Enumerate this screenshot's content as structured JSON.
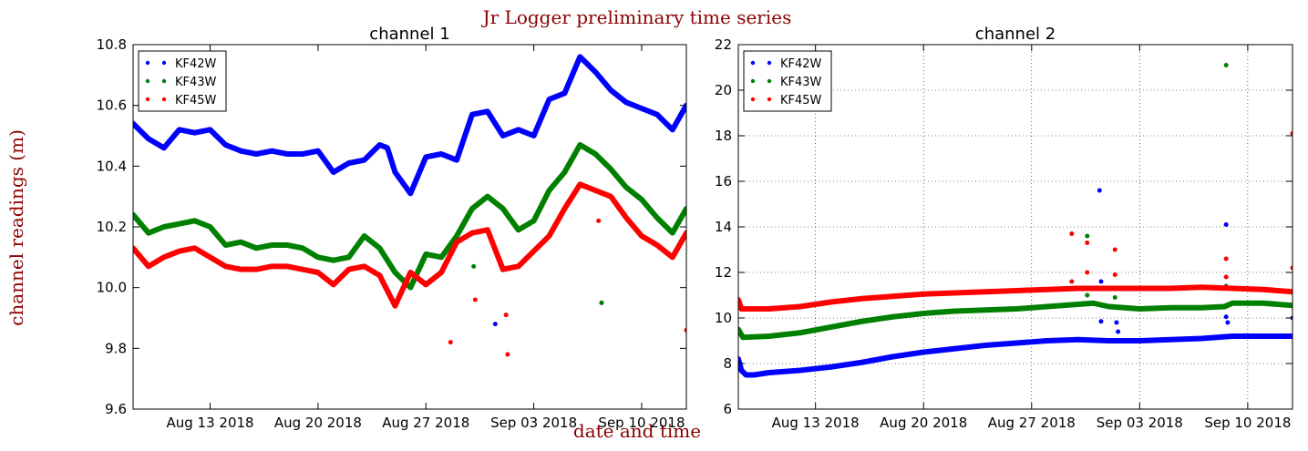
{
  "suptitle": "Jr Logger preliminary time series",
  "xlabel": "date and time",
  "ylabel": "channel  readings (m)",
  "chart_data": [
    {
      "type": "scatter",
      "title": "channel 1",
      "grid": false,
      "legend_position": "top-left",
      "xlim": [
        8,
        43.9
      ],
      "ylim": [
        9.6,
        10.8
      ],
      "xticks": [
        {
          "x": 13,
          "label": "Aug 13 2018"
        },
        {
          "x": 20,
          "label": "Aug 20 2018"
        },
        {
          "x": 27,
          "label": "Aug 27 2018"
        },
        {
          "x": 34,
          "label": "Sep 03 2018"
        },
        {
          "x": 41,
          "label": "Sep 10 2018"
        }
      ],
      "yticks": [
        "9.6",
        "9.8",
        "10.0",
        "10.2",
        "10.4",
        "10.6",
        "10.8"
      ],
      "series": [
        {
          "name": "KF42W",
          "color": "#0000ff",
          "x": [
            8,
            9,
            10,
            11,
            12,
            13,
            14,
            15,
            16,
            17,
            18,
            19,
            20,
            21,
            22,
            23,
            24,
            24.5,
            25,
            26,
            27,
            28,
            29,
            30,
            31,
            32,
            33,
            34,
            35,
            36,
            37,
            38,
            39,
            40,
            41,
            42,
            43,
            43.9
          ],
          "y": [
            10.54,
            10.49,
            10.46,
            10.52,
            10.51,
            10.52,
            10.47,
            10.45,
            10.44,
            10.45,
            10.44,
            10.44,
            10.45,
            10.38,
            10.41,
            10.42,
            10.47,
            10.46,
            10.38,
            10.31,
            10.43,
            10.44,
            10.42,
            10.57,
            10.58,
            10.5,
            10.52,
            10.5,
            10.62,
            10.64,
            10.76,
            10.71,
            10.65,
            10.61,
            10.59,
            10.57,
            10.52,
            10.6
          ],
          "outliers": [
            [
              31.5,
              9.88
            ],
            [
              38.4,
              9.95
            ]
          ]
        },
        {
          "name": "KF43W",
          "color": "#008000",
          "x": [
            8,
            9,
            10,
            11,
            12,
            13,
            14,
            15,
            16,
            17,
            18,
            19,
            20,
            21,
            22,
            23,
            24,
            25,
            26,
            27,
            28,
            29,
            30,
            31,
            32,
            33,
            34,
            35,
            36,
            37,
            38,
            39,
            40,
            41,
            42,
            43,
            43.9
          ],
          "y": [
            10.24,
            10.18,
            10.2,
            10.21,
            10.22,
            10.2,
            10.14,
            10.15,
            10.13,
            10.14,
            10.14,
            10.13,
            10.1,
            10.09,
            10.1,
            10.17,
            10.13,
            10.05,
            10.0,
            10.11,
            10.1,
            10.17,
            10.26,
            10.3,
            10.26,
            10.19,
            10.22,
            10.32,
            10.38,
            10.47,
            10.44,
            10.39,
            10.33,
            10.29,
            10.23,
            10.18,
            10.26
          ],
          "outliers": [
            [
              30.1,
              10.07
            ],
            [
              38.4,
              9.95
            ]
          ]
        },
        {
          "name": "KF45W",
          "color": "#ff0000",
          "x": [
            8,
            9,
            10,
            11,
            12,
            13,
            14,
            15,
            16,
            17,
            18,
            19,
            20,
            21,
            22,
            23,
            24,
            25,
            26,
            27,
            28,
            29,
            30,
            31,
            32,
            33,
            34,
            35,
            36,
            37,
            38,
            39,
            40,
            41,
            42,
            43,
            43.9
          ],
          "y": [
            10.13,
            10.07,
            10.1,
            10.12,
            10.13,
            10.1,
            10.07,
            10.06,
            10.06,
            10.07,
            10.07,
            10.06,
            10.05,
            10.01,
            10.06,
            10.07,
            10.04,
            9.94,
            10.05,
            10.01,
            10.05,
            10.15,
            10.18,
            10.19,
            10.06,
            10.07,
            10.12,
            10.17,
            10.26,
            10.34,
            10.32,
            10.3,
            10.23,
            10.17,
            10.14,
            10.1,
            10.18
          ],
          "outliers": [
            [
              28.6,
              9.82
            ],
            [
              30.2,
              9.96
            ],
            [
              32.2,
              9.91
            ],
            [
              32.3,
              9.78
            ],
            [
              38.2,
              10.22
            ],
            [
              43.9,
              9.86
            ]
          ]
        }
      ]
    },
    {
      "type": "scatter",
      "title": "channel 2",
      "grid": true,
      "legend_position": "top-left",
      "xlim": [
        8,
        43.9
      ],
      "ylim": [
        6,
        22
      ],
      "xticks": [
        {
          "x": 13,
          "label": "Aug 13 2018"
        },
        {
          "x": 20,
          "label": "Aug 20 2018"
        },
        {
          "x": 27,
          "label": "Aug 27 2018"
        },
        {
          "x": 34,
          "label": "Sep 03 2018"
        },
        {
          "x": 41,
          "label": "Sep 10 2018"
        }
      ],
      "yticks": [
        "6",
        "8",
        "10",
        "12",
        "14",
        "16",
        "18",
        "20",
        "22"
      ],
      "series": [
        {
          "name": "KF42W",
          "color": "#0000ff",
          "x": [
            8,
            8.2,
            8.5,
            9,
            10,
            12,
            14,
            16,
            18,
            20,
            22,
            24,
            26,
            28,
            30,
            32,
            34,
            36,
            38,
            40,
            42,
            43.9
          ],
          "y": [
            8.2,
            7.7,
            7.5,
            7.5,
            7.6,
            7.7,
            7.85,
            8.05,
            8.3,
            8.5,
            8.65,
            8.8,
            8.9,
            9.0,
            9.05,
            9.0,
            9.0,
            9.05,
            9.1,
            9.2,
            9.2,
            9.2
          ],
          "outliers": [
            [
              31.4,
              15.6
            ],
            [
              31.5,
              11.6
            ],
            [
              31.5,
              9.85
            ],
            [
              32.5,
              9.8
            ],
            [
              32.6,
              9.4
            ],
            [
              39.6,
              14.1
            ],
            [
              39.6,
              10.05
            ],
            [
              39.7,
              9.8
            ],
            [
              43.9,
              10.0
            ]
          ]
        },
        {
          "name": "KF43W",
          "color": "#008000",
          "x": [
            8,
            8.3,
            10,
            12,
            14,
            16,
            18,
            20,
            22,
            24,
            26,
            28,
            30,
            31,
            32,
            34,
            36,
            38,
            39.5,
            40,
            42,
            43.9
          ],
          "y": [
            9.5,
            9.15,
            9.2,
            9.35,
            9.6,
            9.85,
            10.05,
            10.2,
            10.3,
            10.35,
            10.4,
            10.5,
            10.6,
            10.65,
            10.5,
            10.4,
            10.45,
            10.45,
            10.5,
            10.65,
            10.65,
            10.55
          ],
          "outliers": [
            [
              30.6,
              13.6
            ],
            [
              30.6,
              11.0
            ],
            [
              32.4,
              10.9
            ],
            [
              39.6,
              21.1
            ],
            [
              39.6,
              11.4
            ]
          ]
        },
        {
          "name": "KF45W",
          "color": "#ff0000",
          "x": [
            8,
            8.2,
            10,
            12,
            14,
            16,
            18,
            20,
            22,
            24,
            26,
            28,
            30,
            32,
            34,
            36,
            38,
            40,
            42,
            43.9
          ],
          "y": [
            10.8,
            10.4,
            10.4,
            10.5,
            10.7,
            10.85,
            10.95,
            11.05,
            11.1,
            11.15,
            11.2,
            11.25,
            11.3,
            11.3,
            11.3,
            11.3,
            11.35,
            11.3,
            11.25,
            11.15
          ],
          "outliers": [
            [
              29.6,
              13.7
            ],
            [
              29.6,
              11.6
            ],
            [
              30.6,
              13.3
            ],
            [
              30.6,
              12.0
            ],
            [
              32.4,
              13.0
            ],
            [
              32.4,
              11.9
            ],
            [
              39.6,
              12.6
            ],
            [
              39.6,
              11.8
            ],
            [
              43.9,
              18.1
            ],
            [
              43.9,
              12.2
            ]
          ]
        }
      ]
    }
  ]
}
